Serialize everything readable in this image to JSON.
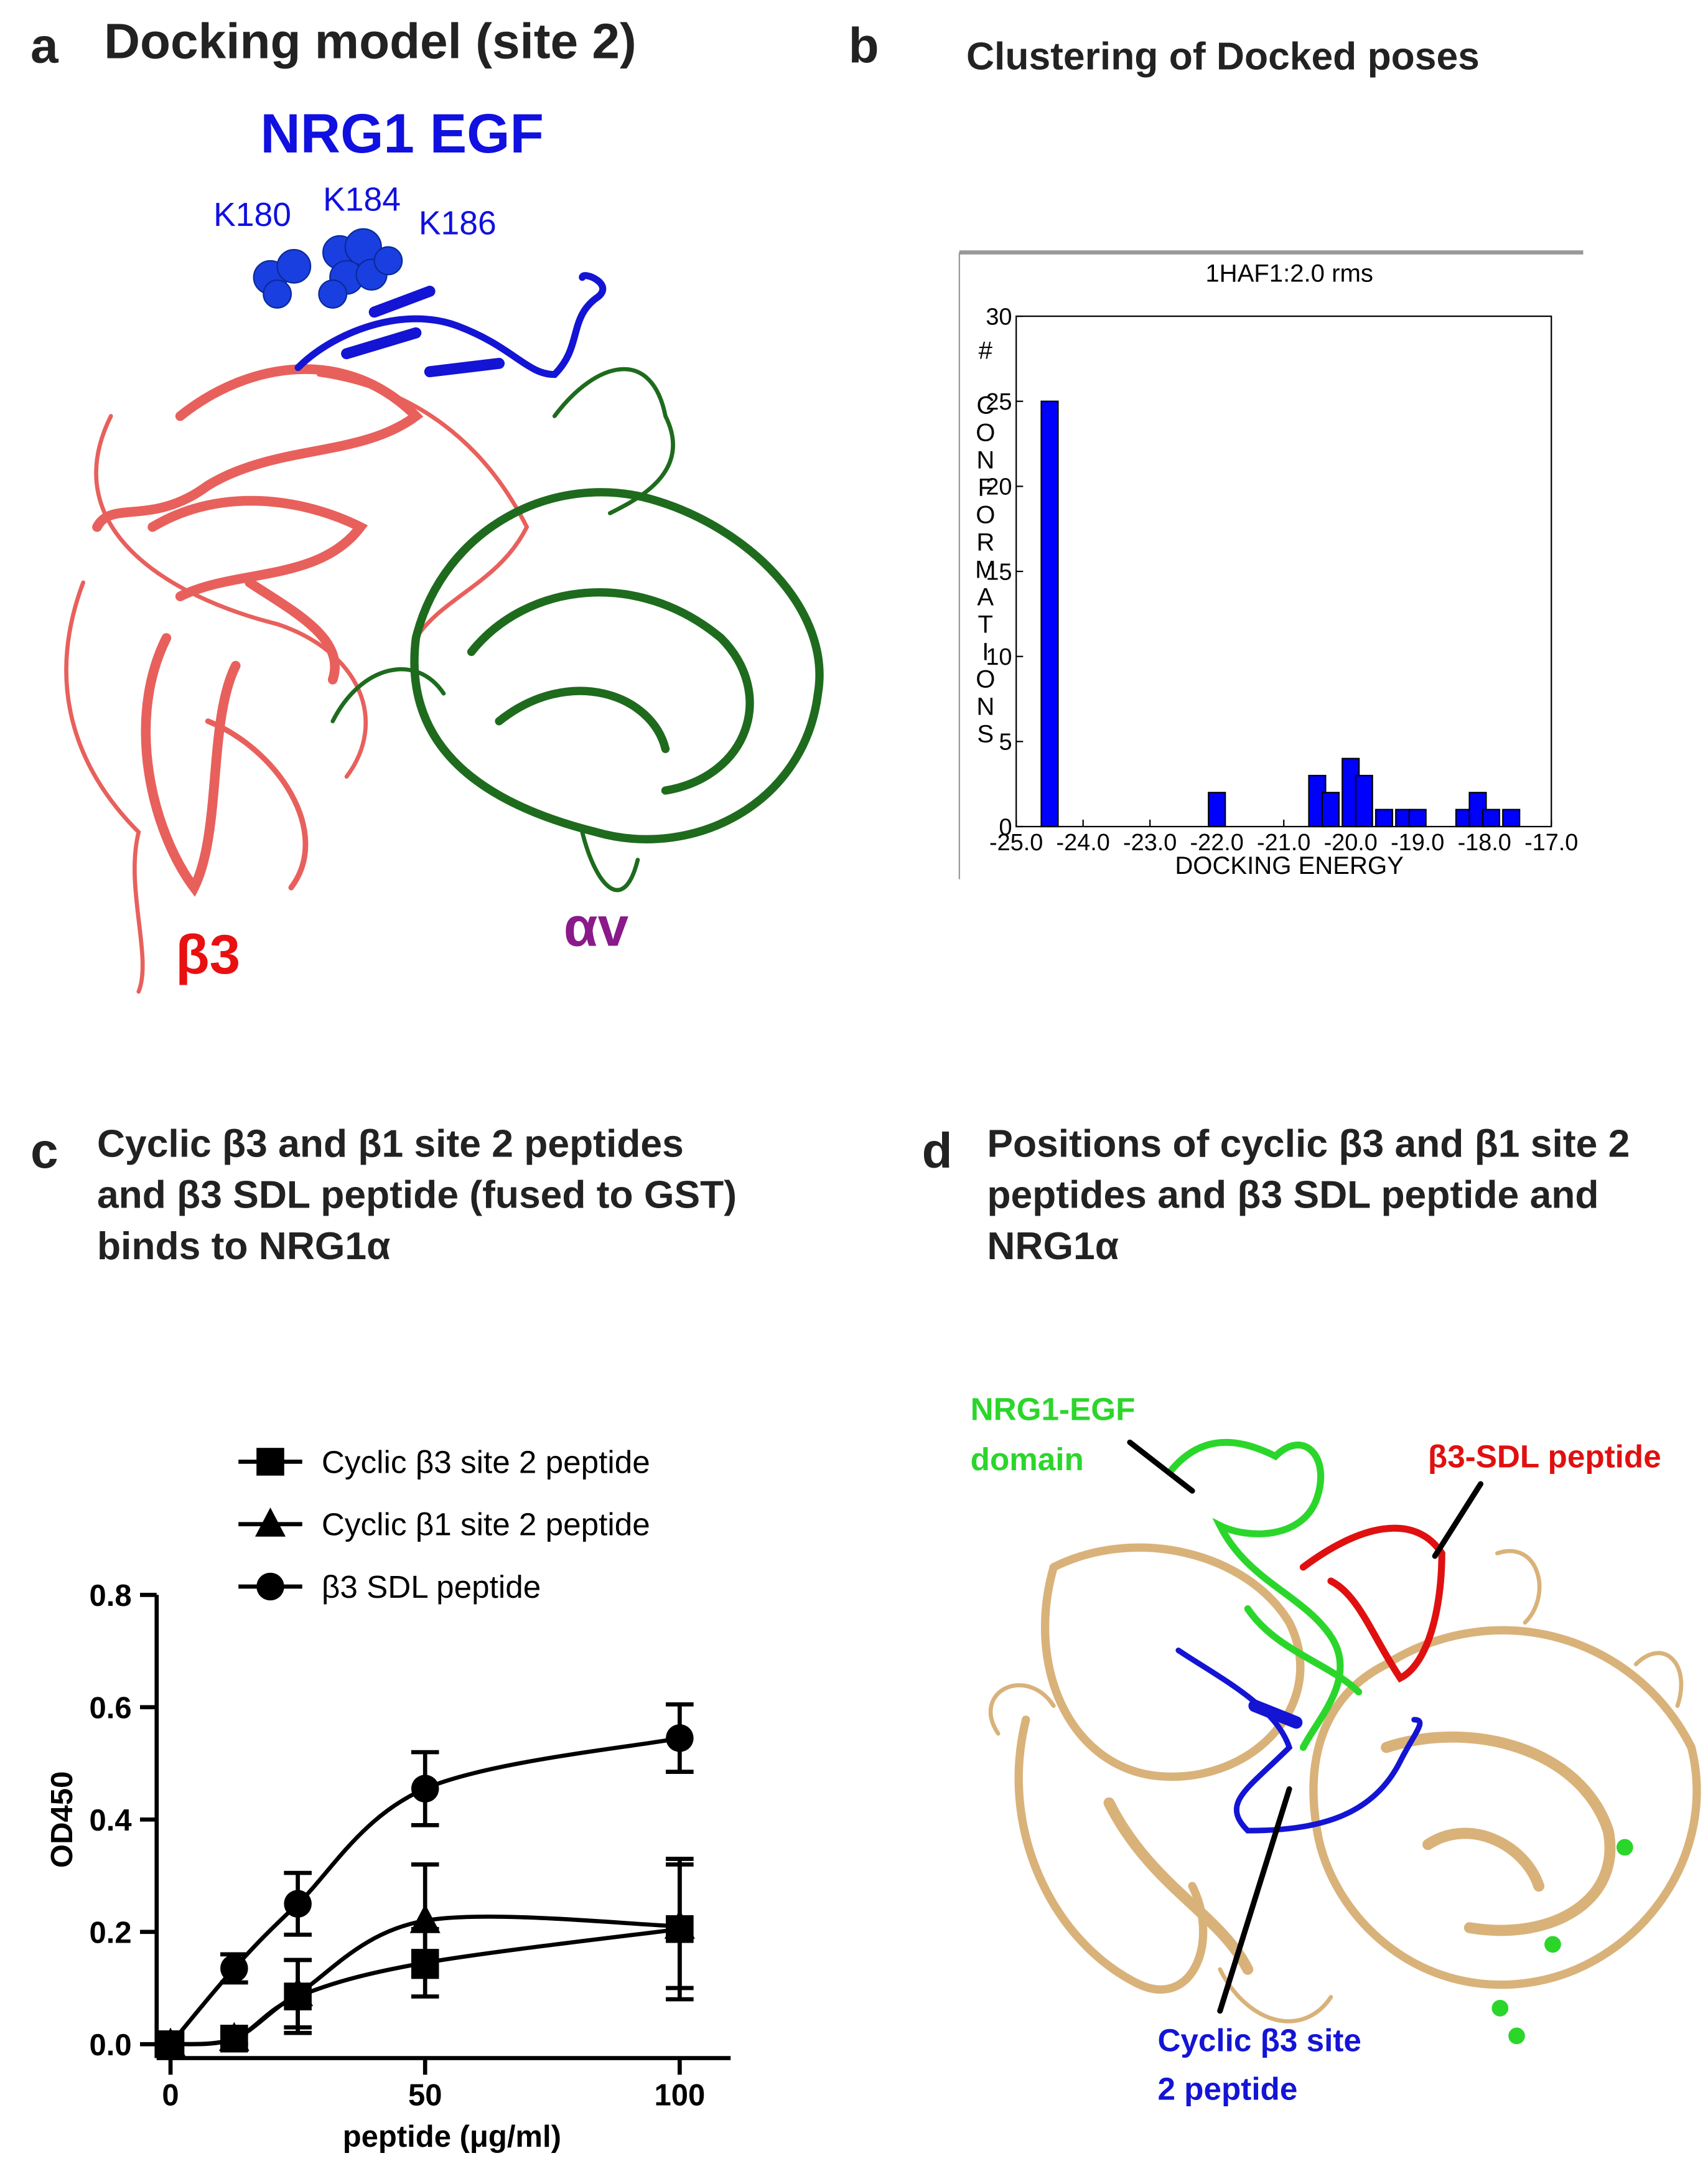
{
  "panel_a": {
    "letter": "a",
    "title": "Docking model (site 2)",
    "ligand_label": "NRG1 EGF",
    "residues": [
      "K180",
      "K184",
      "K186"
    ],
    "beta_label": "β3",
    "alpha_label": "αv"
  },
  "chart_data": [
    {
      "letter": "b",
      "title": "Clustering of Docked poses",
      "type": "bar",
      "plot_title": "1HAF1:2.0 rms",
      "xlabel": "DOCKING ENERGY",
      "ylabel": "# CONFORMATIONS",
      "x": [
        -24.5,
        -22.0,
        -20.5,
        -20.3,
        -20.0,
        -19.8,
        -19.5,
        -19.2,
        -19.0,
        -18.3,
        -18.1,
        -17.9,
        -17.6
      ],
      "values": [
        25,
        2,
        3,
        2,
        4,
        3,
        1,
        1,
        1,
        1,
        2,
        1,
        1
      ],
      "color": "#0000ff",
      "xlim": [
        -25,
        -17
      ],
      "xticks": [
        {
          "value": -25,
          "label": "-25.0"
        },
        {
          "value": -24,
          "label": "-24.0"
        },
        {
          "value": -23,
          "label": "-23.0"
        },
        {
          "value": -22,
          "label": "-22.0"
        },
        {
          "value": -21,
          "label": "-21.0"
        },
        {
          "value": -20,
          "label": "-20.0"
        },
        {
          "value": -19,
          "label": "-19.0"
        },
        {
          "value": -18,
          "label": "-18.0"
        },
        {
          "value": -17,
          "label": "-17.0"
        }
      ],
      "ylim": [
        0,
        30
      ],
      "yticks": [
        0,
        5,
        10,
        15,
        20,
        25,
        30
      ]
    },
    {
      "letter": "c",
      "title_lines": [
        "Cyclic β3 and β1 site 2 peptides",
        "and β3 SDL peptide (fused to GST)",
        "binds to NRG1α"
      ],
      "type": "line",
      "xlabel": "peptide (μg/ml)",
      "ylabel": "OD450",
      "x": [
        0,
        12.5,
        25,
        50,
        100
      ],
      "series": [
        {
          "name": "Cyclic β3 site 2 peptide",
          "marker": "square",
          "color": "#000000",
          "values": [
            0,
            0.01,
            0.085,
            0.145,
            0.205
          ],
          "errors": [
            0,
            0.01,
            0.065,
            0.06,
            0.125
          ]
        },
        {
          "name": "Cyclic β1 site 2 peptide",
          "marker": "triangle",
          "color": "#000000",
          "values": [
            0,
            0.01,
            0.09,
            0.22,
            0.21
          ],
          "errors": [
            0,
            0.01,
            0.06,
            0.1,
            0.11
          ]
        },
        {
          "name": "β3 SDL peptide",
          "marker": "circle",
          "color": "#000000",
          "values": [
            0,
            0.135,
            0.25,
            0.455,
            0.545
          ],
          "errors": [
            0,
            0.025,
            0.055,
            0.065,
            0.06
          ]
        }
      ],
      "xlim": [
        0,
        110
      ],
      "xticks": [
        0,
        50,
        100
      ],
      "ylim": [
        0,
        0.8
      ],
      "yticks": [
        {
          "value": 0,
          "label": "0.0"
        },
        0.2,
        0.4,
        0.6,
        0.8
      ],
      "legend": "upper left"
    }
  ],
  "panel_d": {
    "letter": "d",
    "title_lines": [
      "Positions of cyclic β3 and β1 site 2",
      "peptides and β3 SDL peptide and",
      "NRG1α"
    ],
    "egf_label_lines": [
      "NRG1-EGF",
      "domain"
    ],
    "sdl_label": "β3-SDL peptide",
    "cyclic_label_lines": [
      "Cyclic β3 site",
      "2 peptide"
    ]
  }
}
